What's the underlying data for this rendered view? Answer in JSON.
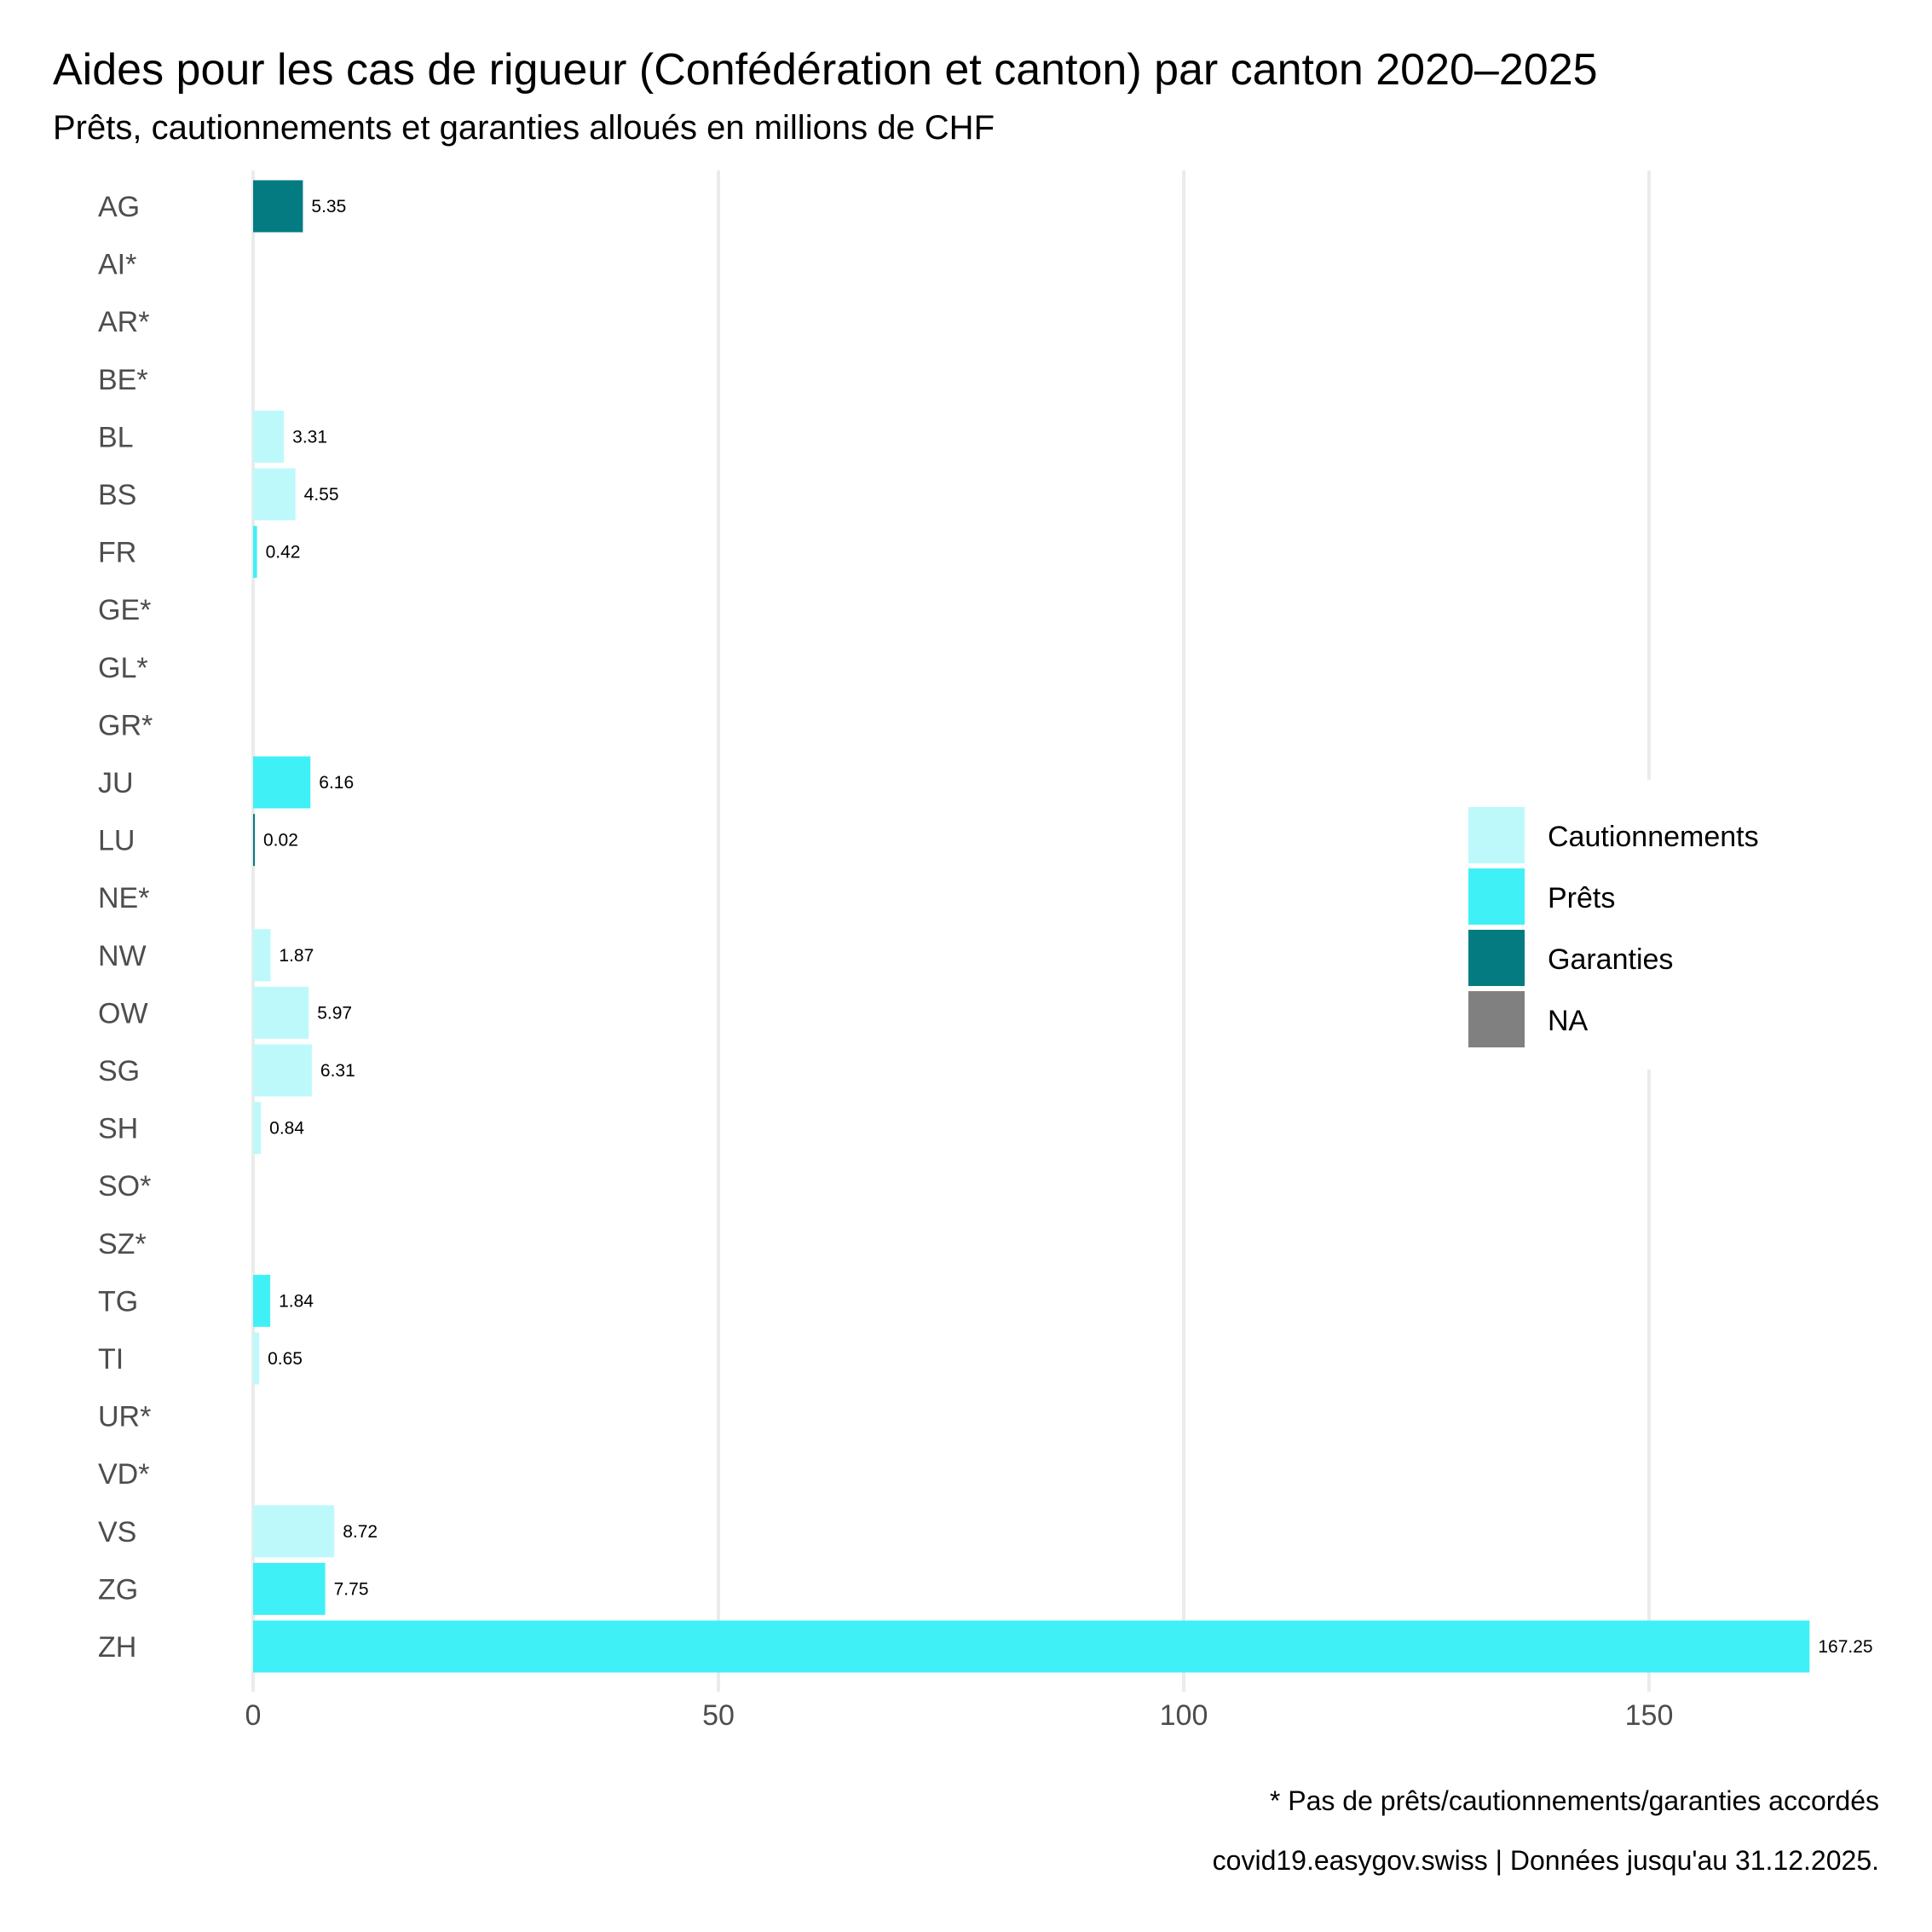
{
  "chart_data": {
    "type": "bar",
    "orientation": "horizontal",
    "title": "Aides pour les cas de rigueur (Confédération et canton) par canton 2020–2025",
    "subtitle": "Prêts, cautionnements et garanties alloués en millions de CHF",
    "xlabel": "",
    "ylabel": "",
    "xlim": [
      0,
      167.25
    ],
    "xticks": [
      0,
      50,
      100,
      150
    ],
    "grid": "vertical major",
    "legend_position": "right",
    "legend": [
      {
        "name": "Cautionnements",
        "color": "#BDF9FA"
      },
      {
        "name": "Prêts",
        "color": "#40F0F7"
      },
      {
        "name": "Garanties",
        "color": "#047B80"
      },
      {
        "name": "NA",
        "color": "#808080"
      }
    ],
    "categories": [
      "AG",
      "AI*",
      "AR*",
      "BE*",
      "BL",
      "BS",
      "FR",
      "GE*",
      "GL*",
      "GR*",
      "JU",
      "LU",
      "NE*",
      "NW",
      "OW",
      "SG",
      "SH",
      "SO*",
      "SZ*",
      "TG",
      "TI",
      "UR*",
      "VD*",
      "VS",
      "ZG",
      "ZH"
    ],
    "bars": [
      {
        "canton": "AG",
        "value": 5.35,
        "type": "Garanties",
        "label": "5.35"
      },
      {
        "canton": "AI*",
        "value": null,
        "type": null,
        "label": null
      },
      {
        "canton": "AR*",
        "value": null,
        "type": null,
        "label": null
      },
      {
        "canton": "BE*",
        "value": null,
        "type": null,
        "label": null
      },
      {
        "canton": "BL",
        "value": 3.31,
        "type": "Cautionnements",
        "label": "3.31"
      },
      {
        "canton": "BS",
        "value": 4.55,
        "type": "Cautionnements",
        "label": "4.55"
      },
      {
        "canton": "FR",
        "value": 0.42,
        "type": "Prêts",
        "label": "0.42"
      },
      {
        "canton": "GE*",
        "value": null,
        "type": null,
        "label": null
      },
      {
        "canton": "GL*",
        "value": null,
        "type": null,
        "label": null
      },
      {
        "canton": "GR*",
        "value": null,
        "type": null,
        "label": null
      },
      {
        "canton": "JU",
        "value": 6.16,
        "type": "Prêts",
        "label": "6.16"
      },
      {
        "canton": "LU",
        "value": 0.02,
        "type": "Garanties",
        "label": "0.02"
      },
      {
        "canton": "NE*",
        "value": null,
        "type": null,
        "label": null
      },
      {
        "canton": "NW",
        "value": 1.87,
        "type": "Cautionnements",
        "label": "1.87"
      },
      {
        "canton": "OW",
        "value": 5.97,
        "type": "Cautionnements",
        "label": "5.97"
      },
      {
        "canton": "SG",
        "value": 6.31,
        "type": "Cautionnements",
        "label": "6.31"
      },
      {
        "canton": "SH",
        "value": 0.84,
        "type": "Cautionnements",
        "label": "0.84"
      },
      {
        "canton": "SO*",
        "value": null,
        "type": null,
        "label": null
      },
      {
        "canton": "SZ*",
        "value": null,
        "type": null,
        "label": null
      },
      {
        "canton": "TG",
        "value": 1.84,
        "type": "Prêts",
        "label": "1.84"
      },
      {
        "canton": "TI",
        "value": 0.65,
        "type": "Cautionnements",
        "label": "0.65"
      },
      {
        "canton": "UR*",
        "value": null,
        "type": null,
        "label": null
      },
      {
        "canton": "VD*",
        "value": null,
        "type": null,
        "label": null
      },
      {
        "canton": "VS",
        "value": 8.72,
        "type": "Cautionnements",
        "label": "8.72"
      },
      {
        "canton": "ZG",
        "value": 7.75,
        "type": "Prêts",
        "label": "7.75"
      },
      {
        "canton": "ZH",
        "value": 167.25,
        "type": "Prêts",
        "label": "167.25"
      }
    ],
    "caption_note": "* Pas de prêts/cautionnements/garanties accordés",
    "caption_source": "covid19.easygov.swiss | Données jusqu'au 31.12.2025."
  }
}
